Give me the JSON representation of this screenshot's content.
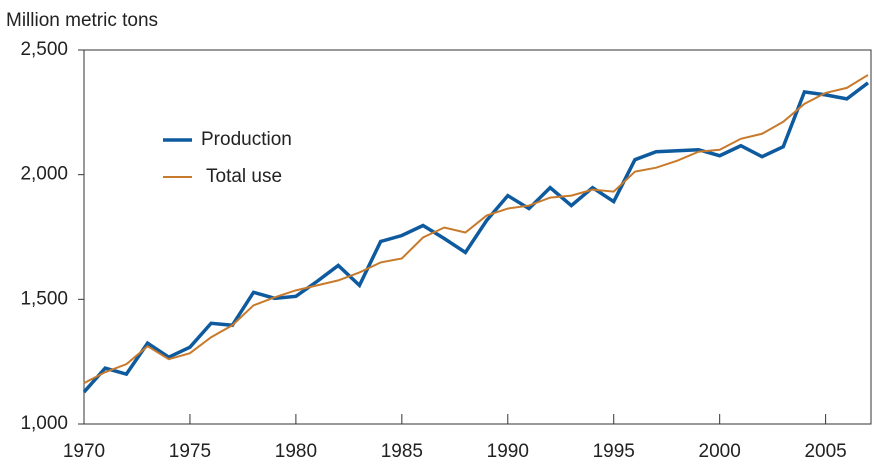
{
  "chart_data": {
    "type": "line",
    "title": "Million metric tons",
    "x": [
      1970,
      1971,
      1972,
      1973,
      1974,
      1975,
      1976,
      1977,
      1978,
      1979,
      1980,
      1981,
      1982,
      1983,
      1984,
      1985,
      1986,
      1987,
      1988,
      1989,
      1990,
      1991,
      1992,
      1993,
      1994,
      1995,
      1996,
      1997,
      1998,
      1999,
      2000,
      2001,
      2002,
      2003,
      2004,
      2005,
      2006,
      2007
    ],
    "series": [
      {
        "name": "Production",
        "color": "#0d5a9e",
        "width": 3.5,
        "values": [
          1128,
          1224,
          1200,
          1324,
          1268,
          1308,
          1404,
          1396,
          1528,
          1504,
          1512,
          1572,
          1636,
          1556,
          1732,
          1756,
          1796,
          1744,
          1688,
          1816,
          1916,
          1864,
          1948,
          1876,
          1948,
          1892,
          2060,
          2092,
          2096,
          2100,
          2076,
          2116,
          2072,
          2112,
          2332,
          2320,
          2304,
          2368
        ]
      },
      {
        "name": "Total use",
        "color": "#c87a2c",
        "width": 2,
        "values": [
          1164,
          1208,
          1240,
          1312,
          1260,
          1284,
          1348,
          1396,
          1476,
          1508,
          1536,
          1556,
          1576,
          1608,
          1648,
          1664,
          1748,
          1788,
          1768,
          1836,
          1864,
          1876,
          1908,
          1916,
          1940,
          1932,
          2012,
          2028,
          2056,
          2092,
          2100,
          2144,
          2164,
          2212,
          2284,
          2328,
          2348,
          2400
        ]
      }
    ],
    "xlim": [
      1970,
      2007
    ],
    "xticks": [
      1970,
      1975,
      1980,
      1985,
      1990,
      1995,
      2000,
      2005
    ],
    "ylim": [
      1000,
      2500
    ],
    "yticks": [
      {
        "value": 1000,
        "label": "1,000"
      },
      {
        "value": 1500,
        "label": "1,500"
      },
      {
        "value": 2000,
        "label": "2,000"
      },
      {
        "value": 2500,
        "label": "2,500"
      }
    ]
  }
}
